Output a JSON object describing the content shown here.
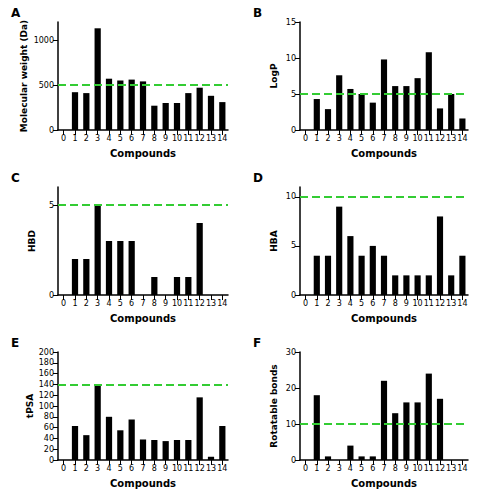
{
  "chart_data": [
    {
      "type": "bar",
      "title": "A",
      "x_label": "Compounds",
      "y_label": "Molecular weight (Da)",
      "categories": [
        "0",
        "1",
        "2",
        "3",
        "4",
        "5",
        "6",
        "7",
        "8",
        "9",
        "10",
        "11",
        "12",
        "13",
        "14"
      ],
      "values": [
        null,
        420,
        410,
        1130,
        570,
        550,
        560,
        540,
        270,
        300,
        300,
        410,
        470,
        380,
        310
      ],
      "color": "#000000",
      "ylim": [
        0,
        1200
      ],
      "yticks": [
        0,
        500,
        1000
      ],
      "grid": false,
      "reference_line": 500
    },
    {
      "type": "bar",
      "title": "B",
      "x_label": "Compounds",
      "y_label": "LogP",
      "categories": [
        "0",
        "1",
        "2",
        "3",
        "4",
        "5",
        "6",
        "7",
        "8",
        "9",
        "10",
        "11",
        "12",
        "13",
        "14"
      ],
      "values": [
        null,
        4.3,
        2.9,
        7.6,
        5.7,
        5.0,
        3.8,
        9.8,
        6.1,
        6.1,
        7.2,
        10.8,
        3.0,
        5.0,
        1.6
      ],
      "color": "#000000",
      "ylim": [
        0,
        15
      ],
      "yticks": [
        0,
        5,
        10,
        15
      ],
      "grid": false,
      "reference_line": 5
    },
    {
      "type": "bar",
      "title": "C",
      "x_label": "Compounds",
      "y_label": "HBD",
      "categories": [
        "0",
        "1",
        "2",
        "3",
        "4",
        "5",
        "6",
        "7",
        "8",
        "9",
        "10",
        "11",
        "12",
        "13",
        "14"
      ],
      "values": [
        null,
        2,
        2,
        5,
        3,
        3,
        3,
        0,
        1,
        0,
        1,
        1,
        4,
        0,
        0
      ],
      "color": "#000000",
      "ylim": [
        0,
        6
      ],
      "yticks": [
        0,
        5
      ],
      "grid": false,
      "reference_line": 5
    },
    {
      "type": "bar",
      "title": "D",
      "x_label": "Compounds",
      "y_label": "HBA",
      "categories": [
        "0",
        "1",
        "2",
        "3",
        "4",
        "5",
        "6",
        "7",
        "8",
        "9",
        "10",
        "11",
        "12",
        "13",
        "14"
      ],
      "values": [
        null,
        4,
        4,
        9,
        6,
        4,
        5,
        4,
        2,
        2,
        2,
        2,
        8,
        2,
        4
      ],
      "color": "#000000",
      "ylim": [
        0,
        11
      ],
      "yticks": [
        0,
        5,
        10
      ],
      "grid": false,
      "reference_line": 10
    },
    {
      "type": "bar",
      "title": "E",
      "x_label": "Compounds",
      "y_label": "tPSA",
      "categories": [
        "0",
        "1",
        "2",
        "3",
        "4",
        "5",
        "6",
        "7",
        "8",
        "9",
        "10",
        "11",
        "12",
        "13",
        "14"
      ],
      "values": [
        null,
        63,
        46,
        140,
        80,
        55,
        75,
        38,
        37,
        35,
        37,
        37,
        116,
        6,
        63
      ],
      "color": "#000000",
      "ylim": [
        0,
        200
      ],
      "yticks": [
        0,
        20,
        40,
        60,
        80,
        100,
        120,
        140,
        160,
        180,
        200
      ],
      "grid": false,
      "reference_line": 140
    },
    {
      "type": "bar",
      "title": "F",
      "x_label": "Compounds",
      "y_label": "Rotatable bonds",
      "categories": [
        "0",
        "1",
        "2",
        "3",
        "4",
        "5",
        "6",
        "7",
        "8",
        "9",
        "10",
        "11",
        "12",
        "13",
        "14"
      ],
      "values": [
        null,
        18,
        1,
        0,
        4,
        1,
        1,
        22,
        13,
        16,
        16,
        24,
        17,
        0,
        0
      ],
      "color": "#000000",
      "ylim": [
        0,
        30
      ],
      "yticks": [
        0,
        10,
        20,
        30
      ],
      "grid": false,
      "reference_line": 10
    }
  ]
}
